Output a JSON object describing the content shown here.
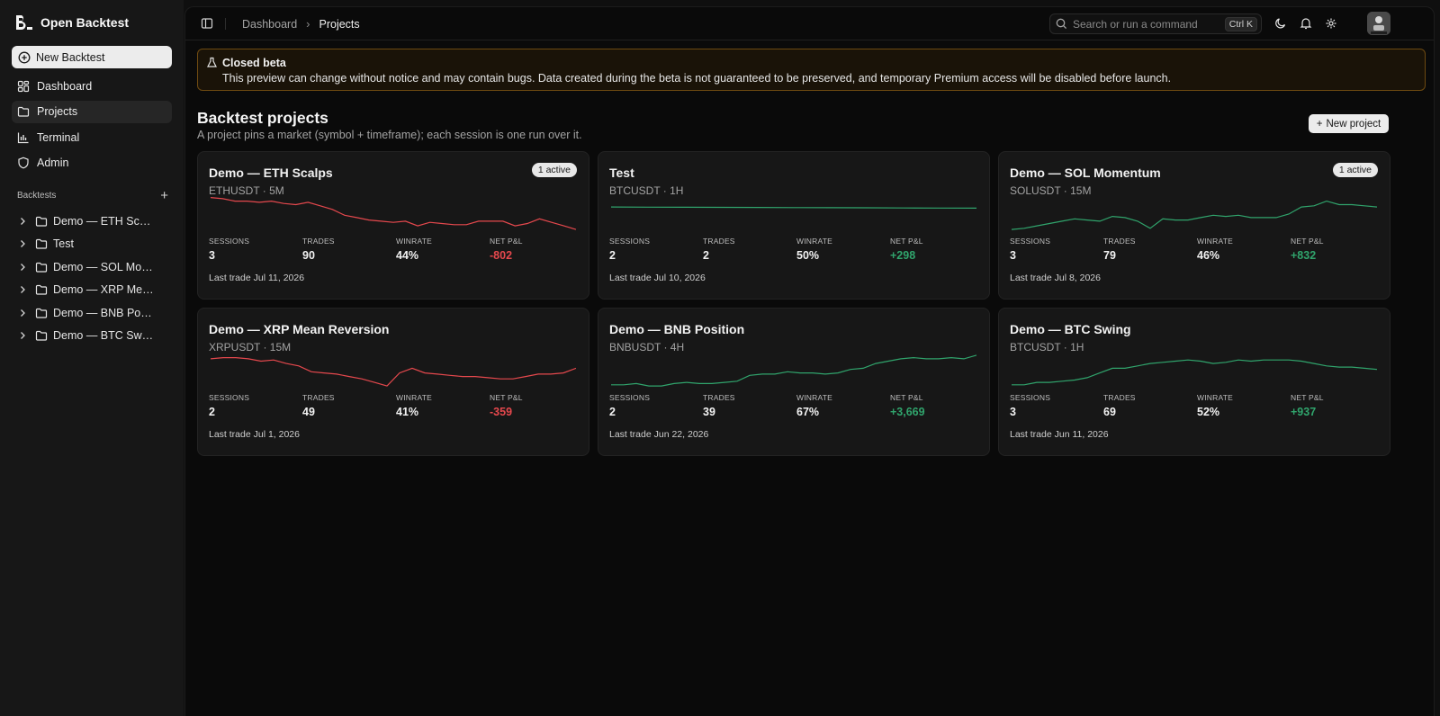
{
  "app": {
    "name": "Open Backtest"
  },
  "sidebar": {
    "new_backtest": "New Backtest",
    "nav": [
      {
        "label": "Dashboard",
        "icon": "dashboard-icon"
      },
      {
        "label": "Projects",
        "icon": "folder-icon",
        "active": true
      },
      {
        "label": "Terminal",
        "icon": "chart-icon"
      },
      {
        "label": "Admin",
        "icon": "shield-icon"
      }
    ],
    "section_title": "Backtests",
    "tree": [
      "Demo — ETH Scalps",
      "Test",
      "Demo — SOL Momentum",
      "Demo — XRP Mean Reversion",
      "Demo — BNB Position",
      "Demo — BTC Swing"
    ]
  },
  "topbar": {
    "breadcrumb": [
      "Dashboard",
      "Projects"
    ],
    "search_placeholder": "Search or run a command",
    "search_shortcut": "Ctrl K"
  },
  "banner": {
    "title": "Closed beta",
    "text": "This preview can change without notice and may contain bugs. Data created during the beta is not guaranteed to be preserved, and temporary Premium access will be disabled before launch."
  },
  "page": {
    "title": "Backtest projects",
    "subtitle": "A project pins a market (symbol + timeframe); each session is one run over it.",
    "new_project": "New project"
  },
  "colors": {
    "negative": "#e5484d",
    "positive": "#30a46c"
  },
  "stat_labels": {
    "sessions": "SESSIONS",
    "trades": "TRADES",
    "winrate": "WINRATE",
    "pnl": "NET P&L"
  },
  "projects": [
    {
      "name": "Demo — ETH Scalps",
      "market": "ETHUSDT · 5M",
      "badge": "1 active",
      "sessions": "3",
      "trades": "90",
      "winrate": "44%",
      "pnl": "-802",
      "trend": "neg",
      "last": "Last trade Jul 11, 2026",
      "spark": [
        30,
        29,
        27,
        27,
        26,
        27,
        25,
        24,
        26,
        23,
        20,
        15,
        13,
        11,
        10,
        9,
        10,
        6,
        9,
        8,
        7,
        7,
        10,
        10,
        10,
        6,
        8,
        12,
        9,
        6,
        3
      ]
    },
    {
      "name": "Test",
      "market": "BTCUSDT · 1H",
      "badge": "",
      "sessions": "2",
      "trades": "2",
      "winrate": "50%",
      "pnl": "+298",
      "trend": "pos",
      "last": "Last trade Jul 10, 2026",
      "spark": [
        22,
        21.9,
        21.8,
        21.7,
        21.6,
        21.5,
        21.4,
        21.3,
        21.2,
        21.1,
        21
      ]
    },
    {
      "name": "Demo — SOL Momentum",
      "market": "SOLUSDT · 15M",
      "badge": "1 active",
      "sessions": "3",
      "trades": "79",
      "winrate": "46%",
      "pnl": "+832",
      "trend": "pos",
      "last": "Last trade Jul 8, 2026",
      "spark": [
        3,
        4,
        6,
        8,
        10,
        12,
        11,
        10,
        14,
        13,
        10,
        4,
        12,
        11,
        11,
        13,
        15,
        14,
        15,
        13,
        13,
        13,
        16,
        22,
        23,
        27,
        24,
        24,
        23,
        22
      ]
    },
    {
      "name": "Demo — XRP Mean Reversion",
      "market": "XRPUSDT · 15M",
      "badge": "",
      "sessions": "2",
      "trades": "49",
      "winrate": "41%",
      "pnl": "-359",
      "trend": "neg",
      "last": "Last trade Jul 1, 2026",
      "spark": [
        26,
        27,
        27,
        26,
        24,
        25,
        22,
        20,
        15,
        14,
        13,
        11,
        9,
        6,
        3,
        14,
        18,
        14,
        13,
        12,
        11,
        11,
        10,
        9,
        9,
        11,
        13,
        13,
        14,
        18
      ]
    },
    {
      "name": "Demo — BNB Position",
      "market": "BNBUSDT · 4H",
      "badge": "",
      "sessions": "2",
      "trades": "39",
      "winrate": "67%",
      "pnl": "+3,669",
      "trend": "pos",
      "last": "Last trade Jun 22, 2026",
      "spark": [
        4,
        4,
        5,
        3,
        3,
        5,
        6,
        5,
        5,
        6,
        7,
        12,
        13,
        13,
        15,
        14,
        14,
        13,
        14,
        17,
        18,
        22,
        24,
        26,
        27,
        26,
        26,
        27,
        26,
        29
      ]
    },
    {
      "name": "Demo — BTC Swing",
      "market": "BTCUSDT · 1H",
      "badge": "",
      "sessions": "3",
      "trades": "69",
      "winrate": "52%",
      "pnl": "+937",
      "trend": "pos",
      "last": "Last trade Jun 11, 2026",
      "spark": [
        4,
        4,
        6,
        6,
        7,
        8,
        10,
        14,
        18,
        18,
        20,
        22,
        23,
        24,
        25,
        24,
        22,
        23,
        25,
        24,
        25,
        25,
        25,
        24,
        22,
        20,
        19,
        19,
        18,
        17
      ]
    }
  ]
}
